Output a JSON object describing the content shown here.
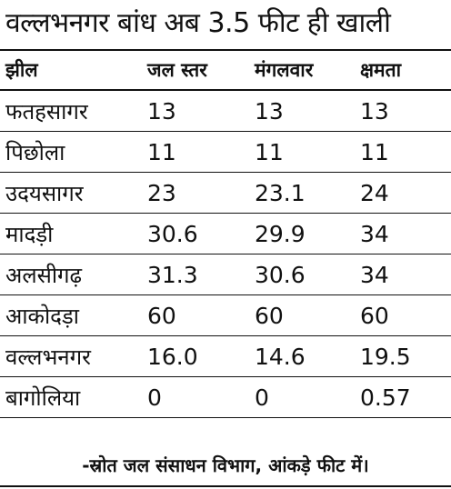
{
  "headline": "वल्लभनगर बांध अब 3.5 फीट ही खाली",
  "table": {
    "headers": [
      "झील",
      "जल स्तर",
      "मंगलवार",
      "क्षमता"
    ],
    "rows": [
      [
        "फतहसागर",
        "13",
        "13",
        "13"
      ],
      [
        "पिछोला",
        "11",
        "11",
        "11"
      ],
      [
        "उदयसागर",
        "23",
        "23.1",
        "24"
      ],
      [
        "मादड़ी",
        "30.6",
        "29.9",
        "34"
      ],
      [
        "अलसीगढ़",
        "31.3",
        "30.6",
        "34"
      ],
      [
        "आकोदड़ा",
        "60",
        "60",
        "60"
      ],
      [
        "वल्लभनगर",
        "16.0",
        "14.6",
        "19.5"
      ],
      [
        "बागोलिया",
        "0",
        "0",
        "0.57"
      ]
    ]
  },
  "source_note": "-स्रोत जल संसाधन विभाग, आंकड़े फीट में।"
}
